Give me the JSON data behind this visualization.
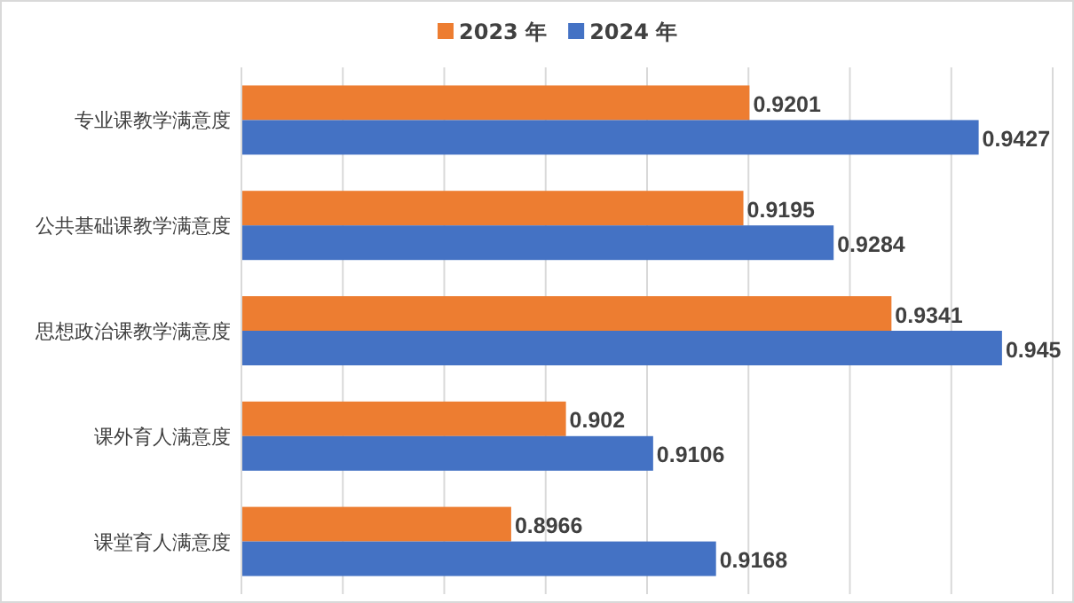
{
  "chart_data": {
    "type": "bar",
    "orientation": "horizontal",
    "categories": [
      "专业课教学满意度",
      "公共基础课教学满意度",
      "思想政治课教学满意度",
      "课外育人满意度",
      "课堂育人满意度"
    ],
    "series": [
      {
        "name": "2023 年",
        "color": "#ed7d31",
        "values": [
          0.9201,
          0.9195,
          0.9341,
          0.902,
          0.8966
        ]
      },
      {
        "name": "2024 年",
        "color": "#4472c4",
        "values": [
          0.9427,
          0.9284,
          0.945,
          0.9106,
          0.9168
        ]
      }
    ],
    "xlim": [
      0.87,
      0.95
    ],
    "xticks": [
      {
        "value": 0.87,
        "label": null
      },
      {
        "value": 0.88,
        "label": null
      },
      {
        "value": 0.89,
        "label": null
      },
      {
        "value": 0.9,
        "label": null
      },
      {
        "value": 0.91,
        "label": null
      },
      {
        "value": 0.92,
        "label": null
      },
      {
        "value": 0.93,
        "label": null
      },
      {
        "value": 0.94,
        "label": null
      },
      {
        "value": 0.95,
        "label": null
      }
    ],
    "grid": "x",
    "legend": "top",
    "tick_labels": "y",
    "data_labels": true
  }
}
